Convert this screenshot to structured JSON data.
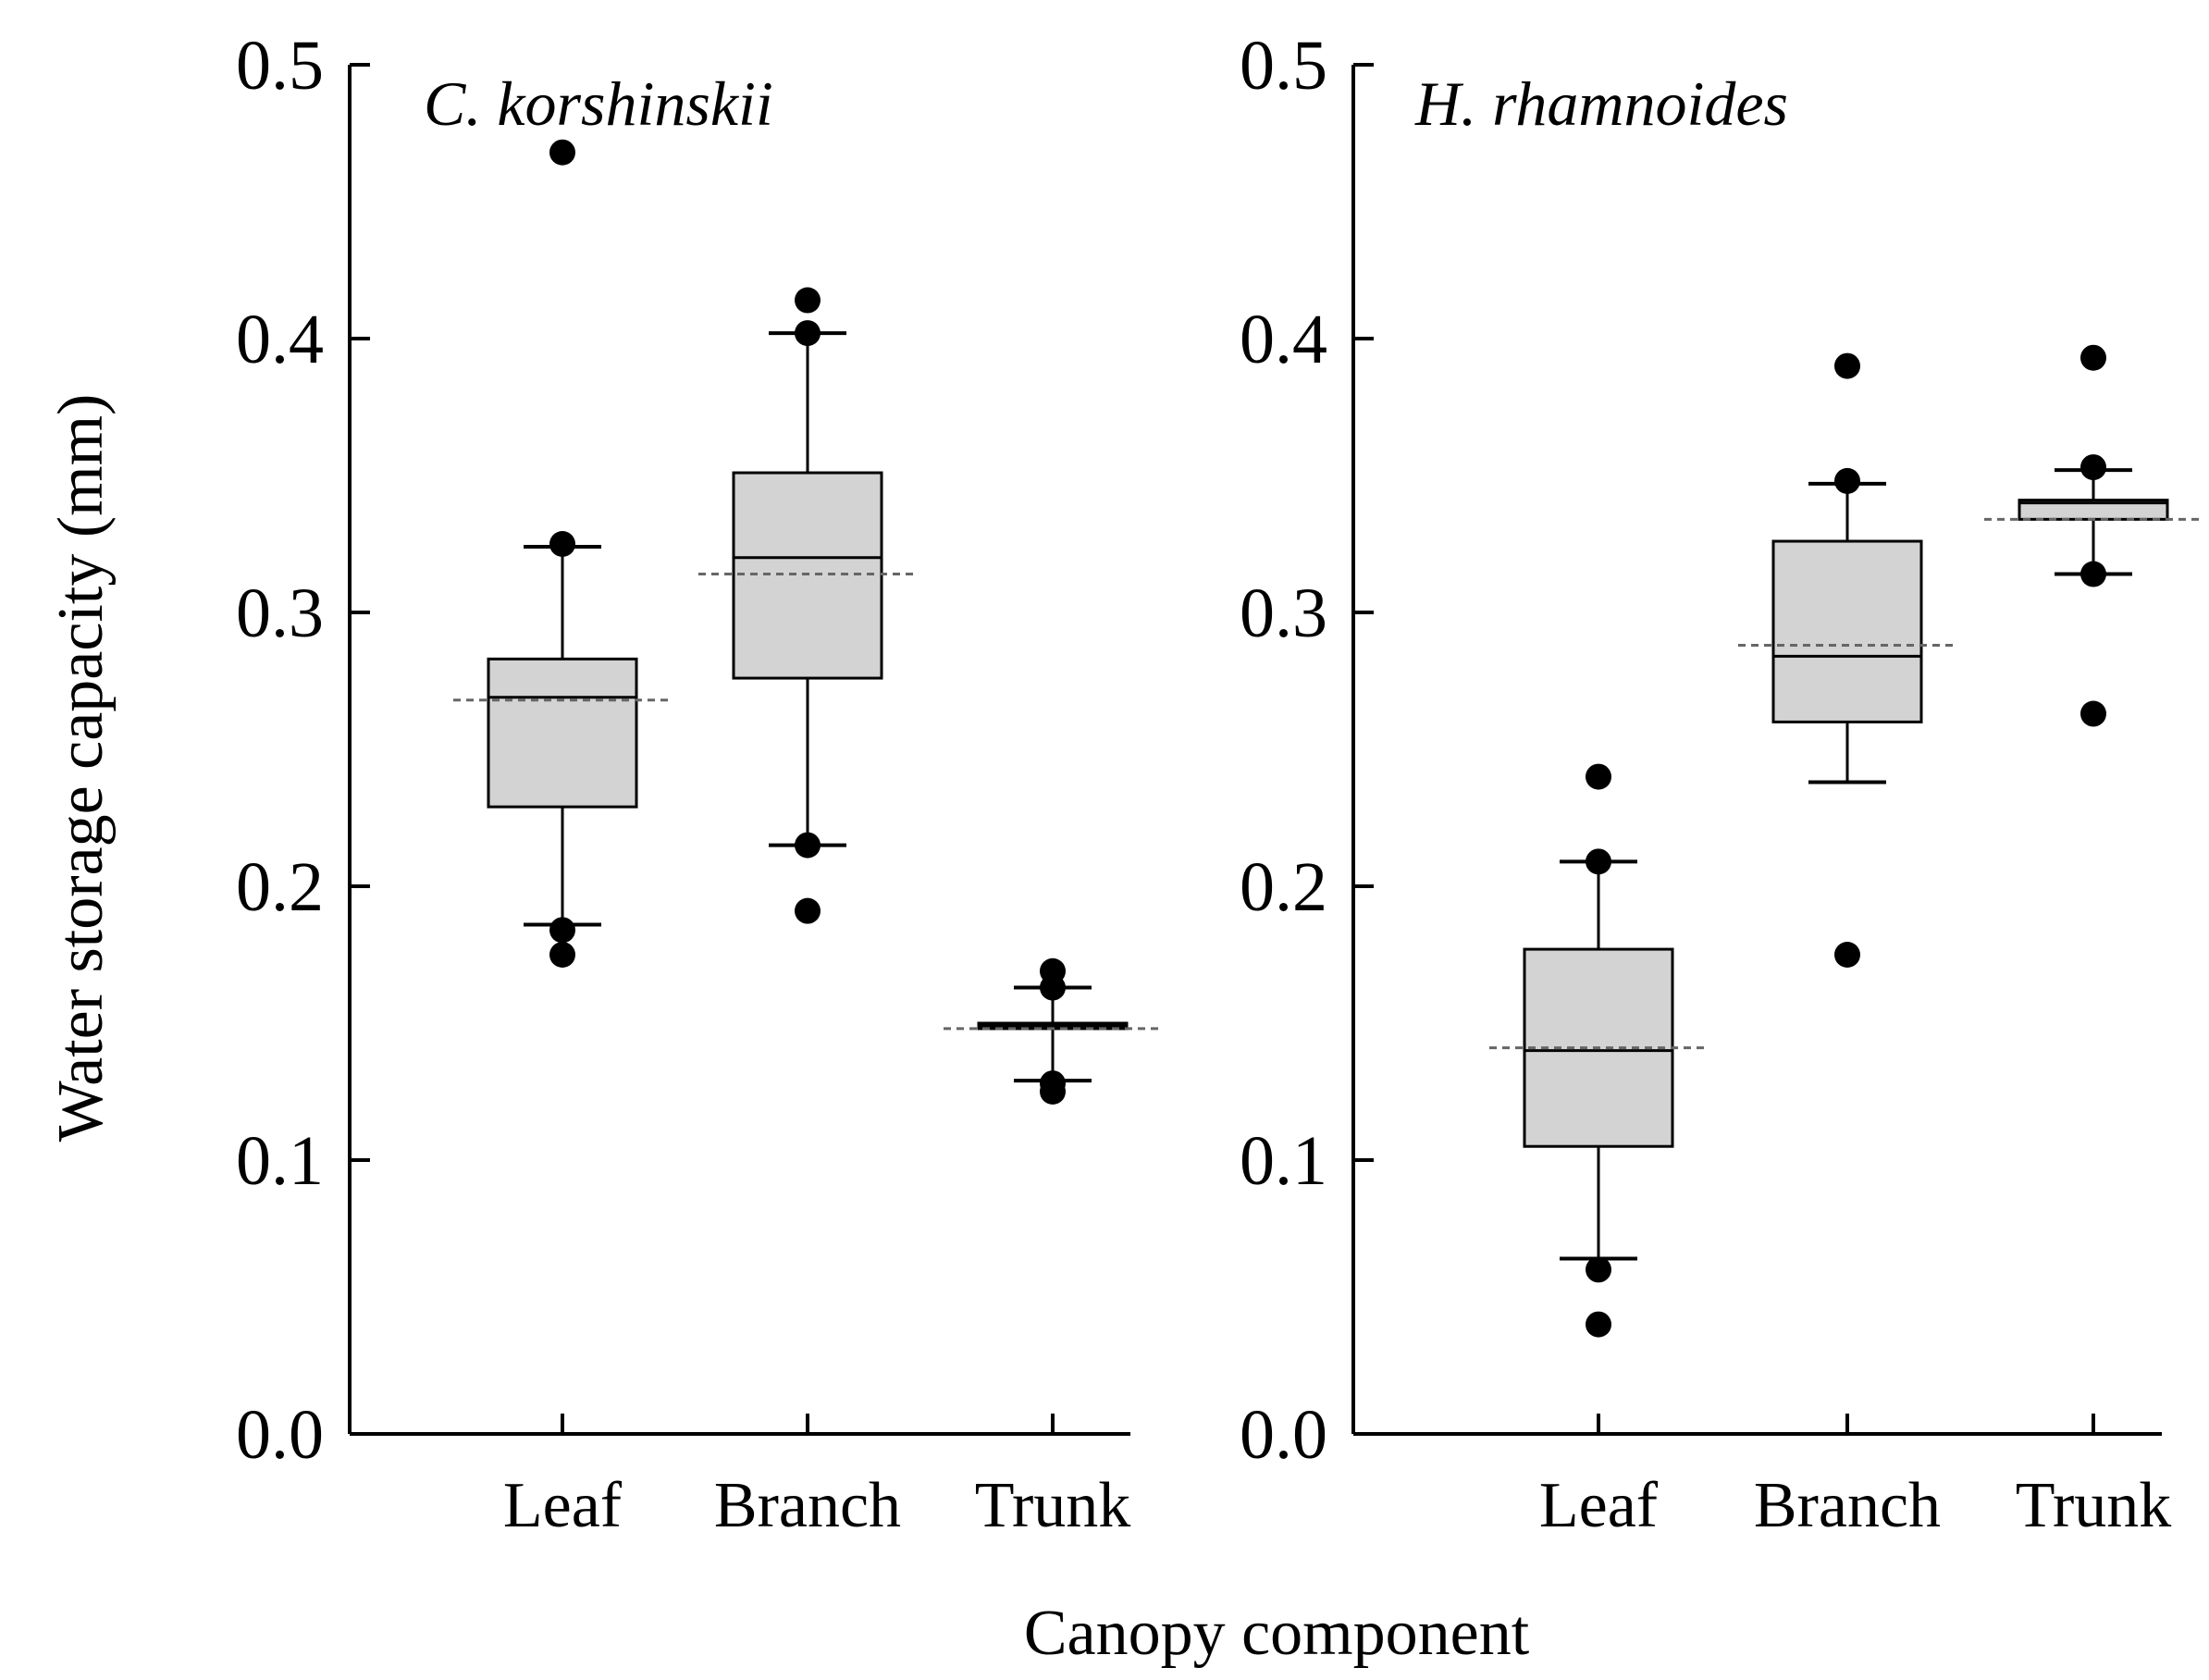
{
  "figure": {
    "ylabel": "Water storage capacity (mm)",
    "xlabel": "Canopy component"
  },
  "colors": {
    "box_fill": "#d3d3d3",
    "line": "#000000",
    "mean_line": "#666666",
    "outlier": "#000000",
    "background": "#ffffff"
  },
  "chart_data": [
    {
      "type": "box",
      "title": "C. korshinskii",
      "categories": [
        "Leaf",
        "Branch",
        "Trunk"
      ],
      "ylim": [
        0.0,
        0.5
      ],
      "yticks": [
        "0.0",
        "0.1",
        "0.2",
        "0.3",
        "0.4",
        "0.5"
      ],
      "yticks_values": [
        0.0,
        0.1,
        0.2,
        0.3,
        0.4,
        0.5
      ],
      "boxes": [
        {
          "category": "Leaf",
          "q1": 0.229,
          "median": 0.269,
          "q3": 0.283,
          "mean": 0.268,
          "whisker_low": 0.186,
          "whisker_high": 0.324,
          "outliers": [
            0.468,
            0.325,
            0.184,
            0.175
          ]
        },
        {
          "category": "Branch",
          "q1": 0.276,
          "median": 0.32,
          "q3": 0.351,
          "mean": 0.314,
          "whisker_low": 0.215,
          "whisker_high": 0.402,
          "outliers": [
            0.414,
            0.402,
            0.215,
            0.191
          ]
        },
        {
          "category": "Trunk",
          "q1": 0.148,
          "median": 0.149,
          "q3": 0.15,
          "mean": 0.148,
          "whisker_low": 0.129,
          "whisker_high": 0.163,
          "outliers": [
            0.169,
            0.163,
            0.128,
            0.125
          ]
        }
      ]
    },
    {
      "type": "box",
      "title": "H. rhamnoides",
      "categories": [
        "Leaf",
        "Branch",
        "Trunk"
      ],
      "ylim": [
        0.0,
        0.5
      ],
      "yticks": [
        "0.0",
        "0.1",
        "0.2",
        "0.3",
        "0.4",
        "0.5"
      ],
      "yticks_values": [
        0.0,
        0.1,
        0.2,
        0.3,
        0.4,
        0.5
      ],
      "boxes": [
        {
          "category": "Leaf",
          "q1": 0.105,
          "median": 0.14,
          "q3": 0.177,
          "mean": 0.141,
          "whisker_low": 0.064,
          "whisker_high": 0.209,
          "outliers": [
            0.24,
            0.209,
            0.06,
            0.04
          ]
        },
        {
          "category": "Branch",
          "q1": 0.26,
          "median": 0.284,
          "q3": 0.326,
          "mean": 0.288,
          "whisker_low": 0.238,
          "whisker_high": 0.347,
          "outliers": [
            0.39,
            0.348,
            0.175
          ]
        },
        {
          "category": "Trunk",
          "q1": 0.334,
          "median": 0.34,
          "q3": 0.341,
          "mean": 0.334,
          "whisker_low": 0.314,
          "whisker_high": 0.352,
          "outliers": [
            0.393,
            0.353,
            0.314,
            0.263
          ]
        }
      ]
    }
  ]
}
